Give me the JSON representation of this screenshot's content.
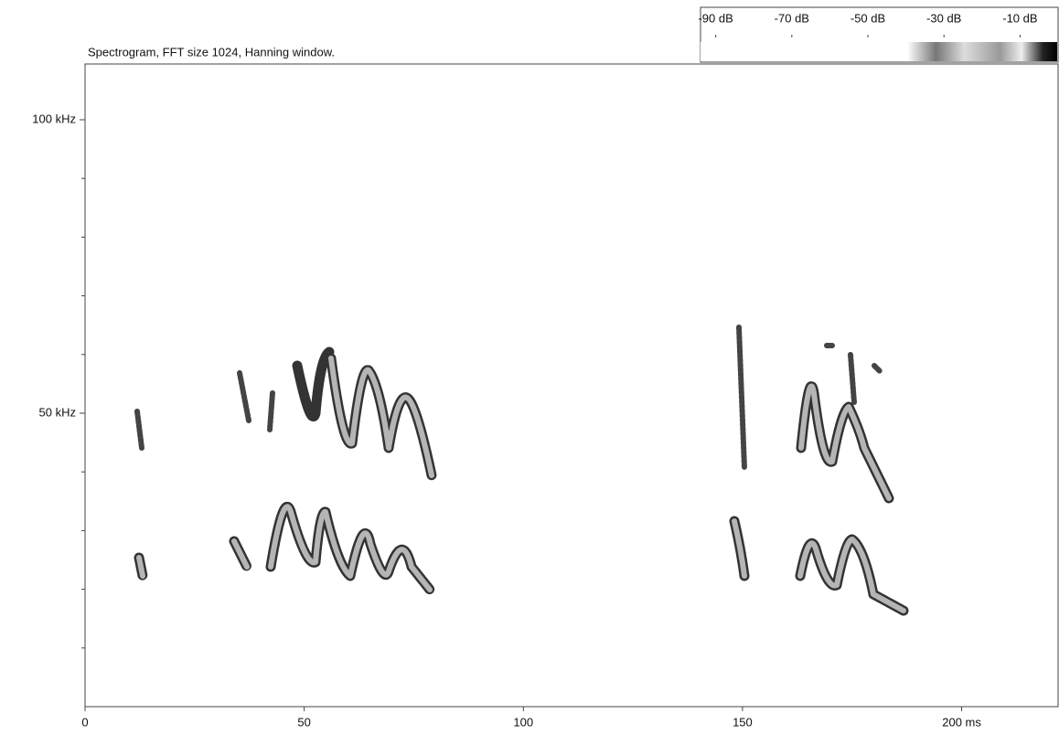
{
  "chart_data": {
    "type": "spectrogram",
    "title": "Spectrogram, FFT size 1024, Hanning window.",
    "xlim": [
      0,
      222
    ],
    "xticks": [
      0,
      50,
      100,
      150,
      {
        "value": 200,
        "label": "200 ms"
      }
    ],
    "ylim": [
      0,
      109.5
    ],
    "yticks": [
      {
        "value": 50,
        "label": "50 kHz"
      },
      {
        "value": 100,
        "label": "100 kHz"
      }
    ],
    "yminor_ticks": [
      10,
      20,
      30,
      40,
      60,
      70,
      80,
      90
    ],
    "colorbar": {
      "lim": [
        -94,
        0
      ],
      "ticks": [
        {
          "value": -90,
          "label": "-90 dB"
        },
        {
          "value": -70,
          "label": "-70 dB"
        },
        {
          "value": -50,
          "label": "-50 dB"
        },
        {
          "value": -30,
          "label": "-30 dB"
        },
        {
          "value": -10,
          "label": "-10 dB"
        }
      ]
    }
  }
}
